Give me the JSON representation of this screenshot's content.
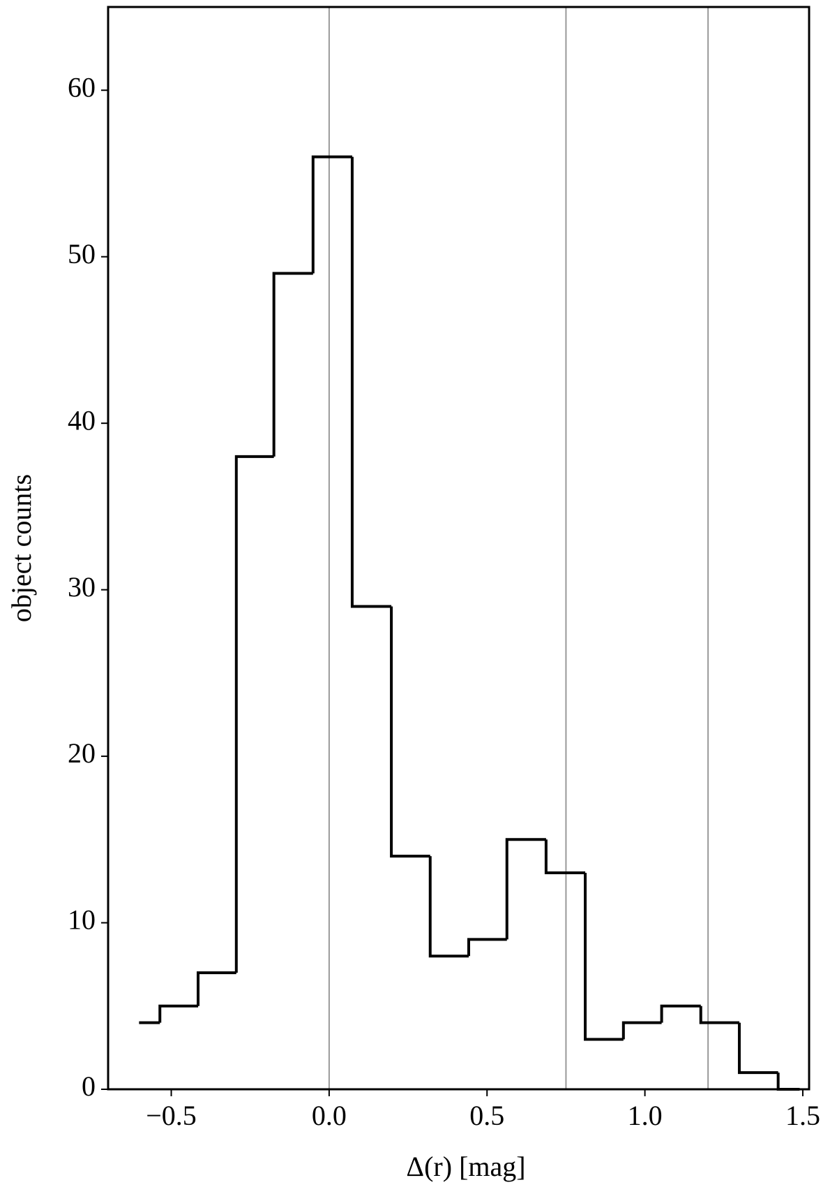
{
  "chart_data": {
    "type": "histogram",
    "xlabel": "Δ(r) [mag]",
    "ylabel": "object counts",
    "bins": [
      -0.602,
      -0.536,
      -0.415,
      -0.294,
      -0.175,
      -0.051,
      0.073,
      0.197,
      0.32,
      0.442,
      0.563,
      0.687,
      0.811,
      0.932,
      1.053,
      1.177,
      1.299,
      1.422,
      1.49
    ],
    "values": [
      4,
      5,
      7,
      38,
      49,
      56,
      29,
      14,
      8,
      9,
      15,
      13,
      3,
      4,
      5,
      4,
      1,
      0
    ],
    "color": "#000000",
    "histtype": "step",
    "vlines": [
      0,
      0.75,
      1.2
    ],
    "vline_color": "#999999",
    "xlim": [
      -0.7,
      1.52
    ],
    "ylim": [
      0,
      65
    ],
    "xticks": [
      {
        "value": -0.5,
        "label": "−0.5"
      },
      {
        "value": 0,
        "label": "0.0"
      },
      {
        "value": 0.5,
        "label": "0.5"
      },
      {
        "value": 1,
        "label": "1.0"
      },
      {
        "value": 1.5,
        "label": "1.5"
      }
    ],
    "yticks": [
      0,
      10,
      20,
      30,
      40,
      50,
      60
    ]
  }
}
